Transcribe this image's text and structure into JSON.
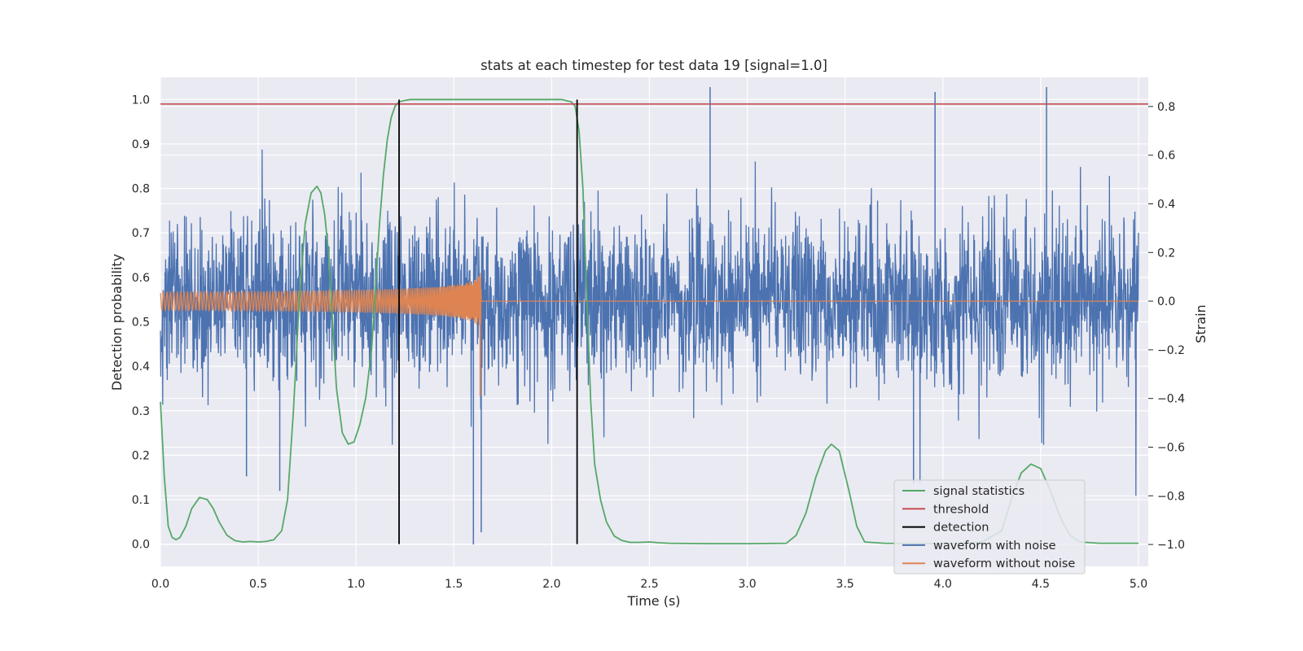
{
  "chart_data": {
    "type": "line",
    "title": "stats at each timestep for test data 19 [signal=1.0]",
    "xlabel": "Time (s)",
    "ylabel": "Detection probability",
    "ylabel_right": "Strain",
    "xlim": [
      0.0,
      5.05
    ],
    "ylim": [
      -0.05,
      1.05
    ],
    "ylim_right": [
      -1.09,
      0.92
    ],
    "xticks": [
      0.0,
      0.5,
      1.0,
      1.5,
      2.0,
      2.5,
      3.0,
      3.5,
      4.0,
      4.5,
      5.0
    ],
    "xtick_labels": [
      "0.0",
      "0.5",
      "1.0",
      "1.5",
      "2.0",
      "2.5",
      "3.0",
      "3.5",
      "4.0",
      "4.5",
      "5.0"
    ],
    "yticks": [
      0.0,
      0.1,
      0.2,
      0.3,
      0.4,
      0.5,
      0.6,
      0.7,
      0.8,
      0.9,
      1.0
    ],
    "ytick_labels": [
      "0.0",
      "0.1",
      "0.2",
      "0.3",
      "0.4",
      "0.5",
      "0.6",
      "0.7",
      "0.8",
      "0.9",
      "1.0"
    ],
    "yticks_right": [
      -1.0,
      -0.8,
      -0.6,
      -0.4,
      -0.2,
      0.0,
      0.2,
      0.4,
      0.6,
      0.8
    ],
    "ytick_labels_right": [
      "−1.0",
      "−0.8",
      "−0.6",
      "−0.4",
      "−0.2",
      "0.0",
      "0.2",
      "0.4",
      "0.6",
      "0.8"
    ],
    "grid": true,
    "legend_position": "lower-right",
    "threshold": 0.99,
    "detections": [
      1.22,
      2.13
    ],
    "series": [
      {
        "name": "signal statistics",
        "axis": "left",
        "color": "#55a868",
        "x": [
          0.0,
          0.02,
          0.04,
          0.06,
          0.08,
          0.1,
          0.13,
          0.16,
          0.2,
          0.24,
          0.27,
          0.3,
          0.34,
          0.38,
          0.42,
          0.46,
          0.5,
          0.54,
          0.58,
          0.62,
          0.65,
          0.68,
          0.71,
          0.74,
          0.77,
          0.8,
          0.82,
          0.84,
          0.86,
          0.88,
          0.9,
          0.93,
          0.96,
          0.99,
          1.02,
          1.05,
          1.08,
          1.1,
          1.12,
          1.14,
          1.16,
          1.18,
          1.2,
          1.22,
          1.25,
          1.28,
          1.35,
          1.5,
          1.7,
          1.9,
          2.05,
          2.1,
          2.12,
          2.14,
          2.16,
          2.18,
          2.2,
          2.22,
          2.25,
          2.28,
          2.32,
          2.36,
          2.4,
          2.45,
          2.5,
          2.55,
          2.6,
          2.8,
          3.0,
          3.2,
          3.25,
          3.3,
          3.35,
          3.4,
          3.43,
          3.47,
          3.52,
          3.56,
          3.6,
          3.7,
          3.9,
          4.1,
          4.2,
          4.3,
          4.35,
          4.4,
          4.45,
          4.5,
          4.55,
          4.6,
          4.65,
          4.7,
          4.8,
          5.0
        ],
        "y": [
          0.32,
          0.15,
          0.04,
          0.015,
          0.01,
          0.015,
          0.04,
          0.08,
          0.105,
          0.1,
          0.08,
          0.05,
          0.02,
          0.008,
          0.005,
          0.006,
          0.005,
          0.006,
          0.01,
          0.03,
          0.1,
          0.3,
          0.55,
          0.72,
          0.79,
          0.805,
          0.79,
          0.74,
          0.65,
          0.5,
          0.35,
          0.25,
          0.225,
          0.23,
          0.27,
          0.33,
          0.44,
          0.58,
          0.72,
          0.83,
          0.91,
          0.96,
          0.985,
          0.995,
          0.998,
          1.0,
          1.0,
          1.0,
          1.0,
          1.0,
          1.0,
          0.995,
          0.985,
          0.93,
          0.8,
          0.55,
          0.32,
          0.18,
          0.1,
          0.05,
          0.018,
          0.008,
          0.004,
          0.004,
          0.005,
          0.003,
          0.002,
          0.001,
          0.001,
          0.002,
          0.02,
          0.07,
          0.15,
          0.21,
          0.225,
          0.21,
          0.12,
          0.04,
          0.005,
          0.002,
          0.001,
          0.002,
          0.005,
          0.03,
          0.1,
          0.16,
          0.18,
          0.17,
          0.12,
          0.06,
          0.02,
          0.005,
          0.002,
          0.002
        ]
      },
      {
        "name": "threshold",
        "axis": "left",
        "color": "#c44e52",
        "x": [
          0.0,
          5.05
        ],
        "y": [
          0.99,
          0.99
        ]
      },
      {
        "name": "detection",
        "axis": "left",
        "color": "#000000",
        "x": [
          1.22,
          2.13
        ],
        "y_range": [
          0.0,
          1.0
        ]
      },
      {
        "name": "waveform with noise",
        "axis": "right",
        "color": "#4c72b0",
        "x_range": [
          0.0,
          5.0
        ],
        "typical_amplitude": 0.35,
        "peak_min": -1.0,
        "peak_max": 0.88
      },
      {
        "name": "waveform without noise",
        "axis": "right",
        "color": "#dd8452",
        "x_range": [
          0.0,
          5.0
        ],
        "chirp_end": 1.64,
        "amplitude_start": 0.055,
        "amplitude_peak": 0.3,
        "min": -0.39
      }
    ]
  }
}
